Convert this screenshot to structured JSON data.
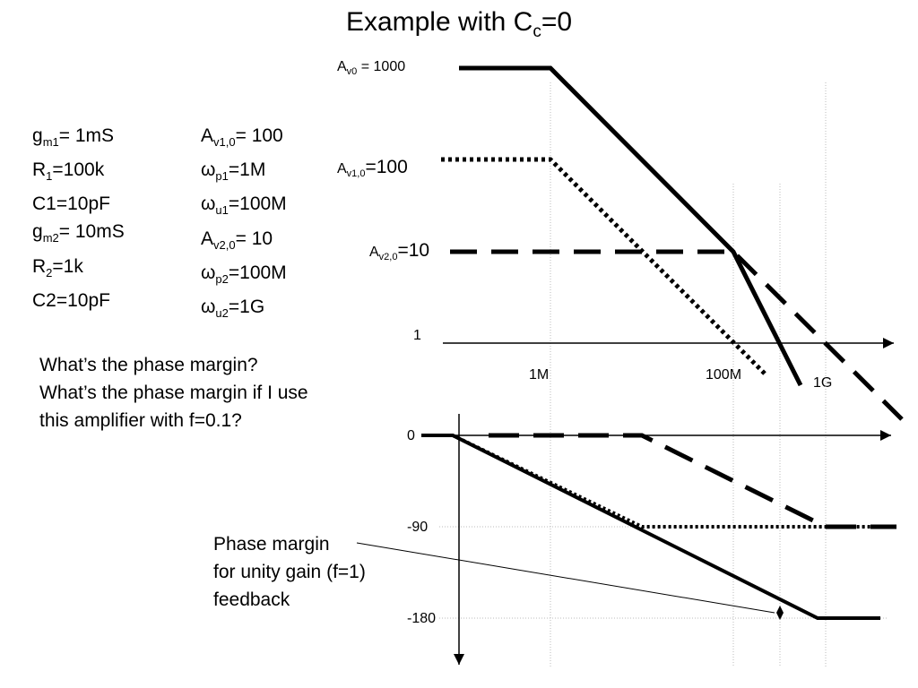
{
  "title": {
    "base": "Example with C",
    "sub": "c",
    "rest": "=0"
  },
  "params_left": [
    {
      "base": "g",
      "sub": "m1",
      "rest": "= 1mS"
    },
    {
      "base": "R",
      "sub": "1",
      "rest": "=100k"
    },
    {
      "base": "C1=10pF",
      "sub": "",
      "rest": ""
    },
    {
      "base": "g",
      "sub": "m2",
      "rest": "= 10mS"
    },
    {
      "base": "R",
      "sub": "2",
      "rest": "=1k"
    },
    {
      "base": "C2=10pF",
      "sub": "",
      "rest": ""
    }
  ],
  "params_right": [
    {
      "base": "A",
      "sub": "v1,0",
      "rest": "= 100"
    },
    {
      "base": "ω",
      "sub": "p1",
      "rest": "=1M"
    },
    {
      "base": "ω",
      "sub": "u1",
      "rest": "=100M"
    },
    {
      "base": "A",
      "sub": "v2,0",
      "rest": "= 10"
    },
    {
      "base": "ω",
      "sub": "p2",
      "rest": "=100M"
    },
    {
      "base": "ω",
      "sub": "u2",
      "rest": "=1G"
    }
  ],
  "questions": [
    "What’s the phase margin?",
    "What’s the phase margin if I use",
    "this amplifier with f=0.1?"
  ],
  "annotation": [
    "Phase margin",
    "for unity gain (f=1)",
    "feedback"
  ],
  "gain_labels": {
    "av0": {
      "base": "A",
      "sub": "v0",
      "rest": " = 1000"
    },
    "av1": {
      "base": "A",
      "sub": "v1,0",
      "rest": "=100"
    },
    "av2": {
      "base": "A",
      "sub": "v2,0",
      "rest": "=10"
    }
  },
  "magnitude_axis": {
    "unity_label": "1",
    "x_ticks": [
      "1M",
      "100M",
      "1G"
    ]
  },
  "phase_axis": {
    "y_ticks": [
      "0",
      "-90",
      "-180"
    ]
  }
}
